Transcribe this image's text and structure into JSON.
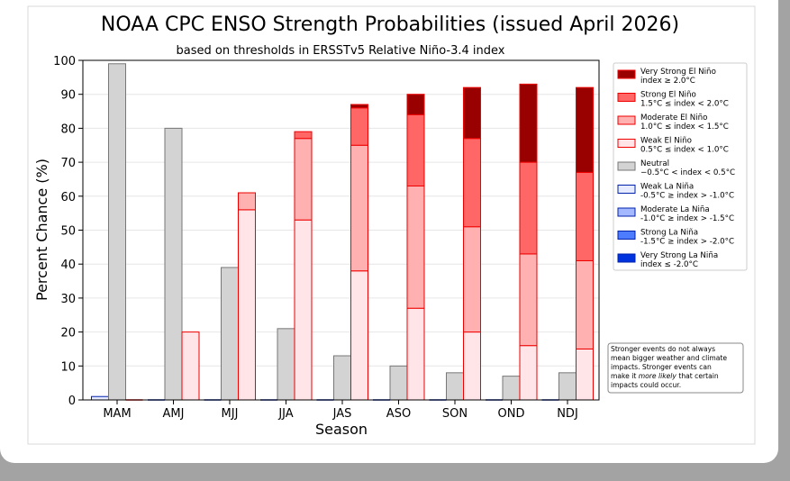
{
  "chart_data": {
    "type": "bar",
    "title": "NOAA CPC ENSO Strength Probabilities (issued April 2026)",
    "subtitle": "based on thresholds in ERSSTv5 Relative Niño-3.4 index",
    "xlabel": "Season",
    "ylabel": "Percent Chance (%)",
    "ylim": [
      0,
      100
    ],
    "yticks": [
      "0",
      "10",
      "20",
      "30",
      "40",
      "50",
      "60",
      "70",
      "80",
      "90",
      "100"
    ],
    "categories": [
      "MAM",
      "AMJ",
      "MJJ",
      "JJA",
      "JAS",
      "ASO",
      "SON",
      "OND",
      "NDJ"
    ],
    "stacking": "stacked within each of three groups per season: La Niña, Neutral, El Niño",
    "series": [
      {
        "name": "Very Strong El Niño",
        "range": "index ≥ 2.0°C",
        "group": "elnino",
        "color": "#990000",
        "values": [
          0,
          0,
          0,
          0,
          1,
          6,
          15,
          23,
          25
        ]
      },
      {
        "name": "Strong El Niño",
        "range": "1.5°C ≤ index < 2.0°C",
        "group": "elnino",
        "color": "#ff6666",
        "values": [
          0,
          0,
          0,
          2,
          11,
          21,
          26,
          27,
          26
        ]
      },
      {
        "name": "Moderate El Niño",
        "range": "1.0°C ≤ index < 1.5°C",
        "group": "elnino",
        "color": "#ffb0b0",
        "values": [
          0,
          0,
          5,
          24,
          37,
          36,
          31,
          27,
          26
        ]
      },
      {
        "name": "Weak El Niño",
        "range": "0.5°C ≤ index < 1.0°C",
        "group": "elnino",
        "color": "#ffe4e8",
        "values": [
          0,
          20,
          56,
          53,
          38,
          27,
          20,
          16,
          15
        ]
      },
      {
        "name": "Neutral",
        "range": "−0.5°C < index < 0.5°C",
        "group": "neutral",
        "color": "#d3d3d3",
        "values": [
          99,
          80,
          39,
          21,
          13,
          10,
          8,
          7,
          8
        ]
      },
      {
        "name": "Weak La Niña",
        "range": "-0.5°C ≥ index > -1.0°C",
        "group": "lanina",
        "color": "#e6ebff",
        "values": [
          1,
          0,
          0,
          0,
          0,
          0,
          0,
          0,
          0
        ]
      },
      {
        "name": "Moderate La Niña",
        "range": "-1.0°C ≥ index > -1.5°C",
        "group": "lanina",
        "color": "#a3b8ff",
        "values": [
          0,
          0,
          0,
          0,
          0,
          0,
          0,
          0,
          0
        ]
      },
      {
        "name": "Strong La Niña",
        "range": "-1.5°C ≥ index > -2.0°C",
        "group": "lanina",
        "color": "#4d7cff",
        "values": [
          0,
          0,
          0,
          0,
          0,
          0,
          0,
          0,
          0
        ]
      },
      {
        "name": "Very Strong La Niña",
        "range": "index ≤ -2.0°C",
        "group": "lanina",
        "color": "#0033dd",
        "values": [
          0,
          0,
          0,
          0,
          0,
          0,
          0,
          0,
          0
        ]
      }
    ],
    "legend_position": "right",
    "grid": "horizontal",
    "note": [
      "Stronger events do not always",
      "mean bigger weather and climate",
      "impacts. Stronger events can",
      "make it ",
      "more likely",
      " that certain",
      "impacts could occur."
    ]
  }
}
